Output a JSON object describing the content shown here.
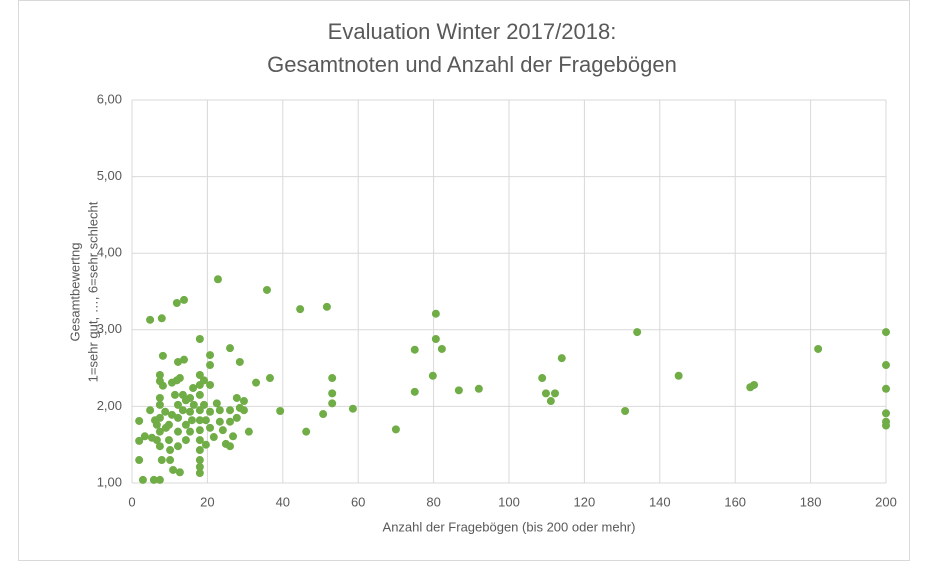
{
  "chart_data": {
    "type": "scatter",
    "title": [
      "Evaluation Winter 2017/2018:",
      "Gesamtnoten und Anzahl der Fragebögen"
    ],
    "x_label": "Anzahl der Fragebögen (bis 200 oder mehr)",
    "y_label": [
      "Gesamtbewertng",
      "1=sehr gut, …, 6=sehr schlecht"
    ],
    "color": "#70ad47",
    "grid": true,
    "xlim": [
      0,
      200
    ],
    "xticks": [
      0,
      20,
      40,
      60,
      80,
      100,
      120,
      140,
      160,
      180,
      200
    ],
    "ylim": [
      1,
      6
    ],
    "yticks": [
      {
        "value": 1,
        "label": "1,00"
      },
      {
        "value": 2,
        "label": "2,00"
      },
      {
        "value": 3,
        "label": "3,00"
      },
      {
        "value": 4,
        "label": "4,00"
      },
      {
        "value": 5,
        "label": "5,00"
      },
      {
        "value": 6,
        "label": "6,00"
      }
    ],
    "x": [
      4.8,
      7.9,
      11.9,
      13.8,
      22.8,
      35.8,
      44.6,
      51.7,
      80.6,
      80.6,
      82.2,
      75,
      79.8,
      75,
      86.7,
      92,
      70,
      58.6,
      46.2,
      39.3,
      50.7,
      53.1,
      53.1,
      53.1,
      36.6,
      32.9,
      31,
      108.8,
      109.8,
      111.1,
      112.2,
      114,
      130.8,
      134,
      145,
      164,
      165,
      182,
      200,
      200,
      200,
      200,
      200,
      200,
      26,
      28.6,
      20.7,
      18,
      20.7,
      12.2,
      13.8,
      8.2,
      1.9,
      1.9,
      1.9,
      2.9,
      5.8,
      7.4,
      3.4,
      5.3,
      6.6,
      6.6,
      7.4,
      7.4,
      8.2,
      7.4,
      7.4,
      7.4,
      7.4,
      7.4,
      7.9,
      8.8,
      9.8,
      9.8,
      10.1,
      10.1,
      10.9,
      10.6,
      11.4,
      11.9,
      12.7,
      12.2,
      12.2,
      12.2,
      12.2,
      12.7,
      13.5,
      14.3,
      13.5,
      14.3,
      14.3,
      15.4,
      15.4,
      15.4,
      16.4,
      18,
      18,
      18,
      18,
      18,
      18,
      18,
      18,
      18,
      18,
      18,
      19.1,
      19.1,
      19.6,
      19.6,
      20.7,
      20.7,
      20.7,
      21.7,
      22.5,
      23.3,
      23.3,
      24.1,
      24.9,
      26,
      26,
      26,
      26.8,
      27.8,
      27.8,
      28.6,
      29.7,
      29.7,
      4.8,
      6.1,
      9,
      10.6,
      16.2,
      15.9
    ],
    "values": [
      3.13,
      3.15,
      3.35,
      3.39,
      3.66,
      3.52,
      3.27,
      3.3,
      3.21,
      2.88,
      2.75,
      2.74,
      2.4,
      2.19,
      2.21,
      2.23,
      1.7,
      1.97,
      1.67,
      1.94,
      1.9,
      2.37,
      2.17,
      2.04,
      2.37,
      2.31,
      1.67,
      2.37,
      2.17,
      2.07,
      2.17,
      2.63,
      1.94,
      2.97,
      2.4,
      2.25,
      2.28,
      2.75,
      2.97,
      2.54,
      2.23,
      1.91,
      1.8,
      1.75,
      2.76,
      2.58,
      2.67,
      2.88,
      2.54,
      2.58,
      2.61,
      2.66,
      1.81,
      1.55,
      1.3,
      1.04,
      1.04,
      1.04,
      1.61,
      1.59,
      1.76,
      1.56,
      2.41,
      2.33,
      2.27,
      2.11,
      2.02,
      1.85,
      1.67,
      1.48,
      1.3,
      1.93,
      1.76,
      1.56,
      1.43,
      1.3,
      1.17,
      2.31,
      2.15,
      2.34,
      2.37,
      2.02,
      1.85,
      1.67,
      1.48,
      1.14,
      2.15,
      2.08,
      1.95,
      1.76,
      1.56,
      2.11,
      1.93,
      1.67,
      2.02,
      2.41,
      2.28,
      2.15,
      1.95,
      1.82,
      1.69,
      1.56,
      1.43,
      1.3,
      1.21,
      1.13,
      2.34,
      2.02,
      1.82,
      1.5,
      2.28,
      1.93,
      1.72,
      1.6,
      2.04,
      1.8,
      1.95,
      1.69,
      1.51,
      1.48,
      1.95,
      1.8,
      1.61,
      2.11,
      1.85,
      1.98,
      2.07,
      1.95,
      1.95,
      1.82,
      1.72,
      1.89,
      2.24,
      1.82
    ]
  }
}
